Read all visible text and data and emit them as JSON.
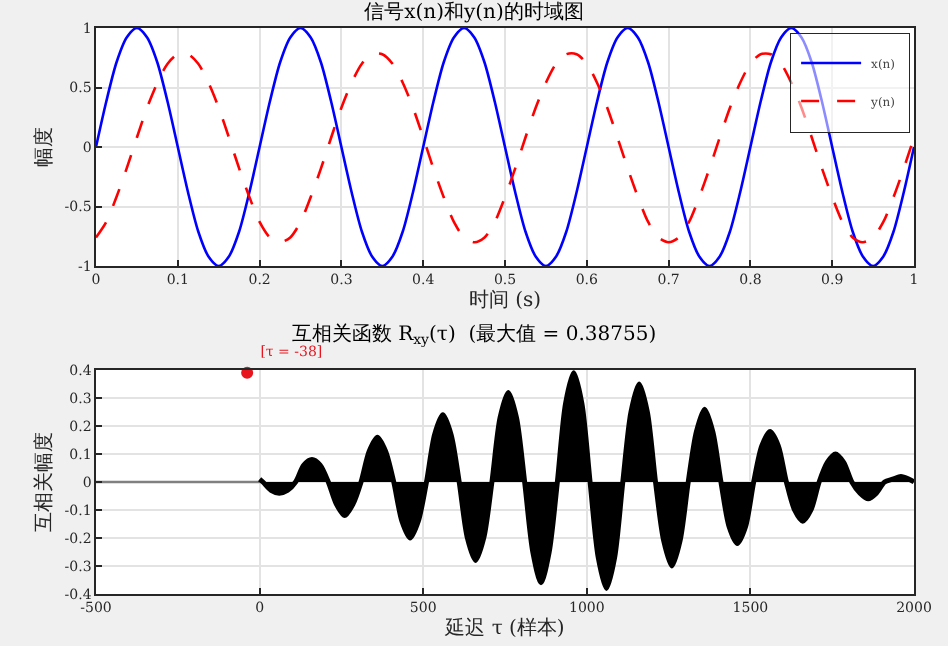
{
  "chart_data": [
    {
      "type": "line",
      "title": "信号x(n)和y(n)的时域图",
      "xlabel": "时间 (s)",
      "ylabel": "幅度",
      "xlim": [
        0,
        1
      ],
      "xticks": [
        0,
        0.1,
        0.2,
        0.3,
        0.4,
        0.5,
        0.6,
        0.7,
        0.8,
        0.9,
        1
      ],
      "ylim": [
        -1,
        1
      ],
      "yticks": [
        -1,
        -0.5,
        0,
        0.5,
        1
      ],
      "grid": true,
      "legend": "top right",
      "x": [
        0,
        0.0125,
        0.025,
        0.0375,
        0.05,
        0.0625,
        0.075,
        0.0875,
        0.1,
        0.1125,
        0.125,
        0.1375,
        0.15,
        0.1625,
        0.175,
        0.1875,
        0.2,
        0.2125,
        0.225,
        0.2375,
        0.25,
        0.2625,
        0.275,
        0.2875,
        0.3,
        0.3125,
        0.325,
        0.3375,
        0.35,
        0.3625,
        0.375,
        0.3875,
        0.4,
        0.4125,
        0.425,
        0.4375,
        0.45,
        0.4625,
        0.475,
        0.4875,
        0.5,
        0.5125,
        0.525,
        0.5375,
        0.55,
        0.5625,
        0.575,
        0.5875,
        0.6,
        0.6125,
        0.625,
        0.6375,
        0.65,
        0.6625,
        0.675,
        0.6875,
        0.7,
        0.7125,
        0.725,
        0.7375,
        0.75,
        0.7625,
        0.775,
        0.7875,
        0.8,
        0.8125,
        0.825,
        0.8375,
        0.85,
        0.8625,
        0.875,
        0.8875,
        0.9,
        0.9125,
        0.925,
        0.9375,
        0.95,
        0.9625,
        0.975,
        0.9875,
        1
      ],
      "series": [
        {
          "name": "x(n)",
          "color": "#0000ff",
          "line_style": "solid",
          "values": [
            0,
            0.38,
            0.71,
            0.92,
            1,
            0.92,
            0.71,
            0.38,
            0,
            -0.38,
            -0.71,
            -0.92,
            -1,
            -0.92,
            -0.71,
            -0.38,
            0,
            0.38,
            0.71,
            0.92,
            1,
            0.92,
            0.71,
            0.38,
            0,
            -0.38,
            -0.71,
            -0.92,
            -1,
            -0.92,
            -0.71,
            -0.38,
            0,
            0.38,
            0.71,
            0.92,
            1,
            0.92,
            0.71,
            0.38,
            0,
            -0.38,
            -0.71,
            -0.92,
            -1,
            -0.92,
            -0.71,
            -0.38,
            0,
            0.38,
            0.71,
            0.92,
            1,
            0.92,
            0.71,
            0.38,
            0,
            -0.38,
            -0.71,
            -0.92,
            -1,
            -0.92,
            -0.71,
            -0.38,
            0,
            0.38,
            0.71,
            0.92,
            1,
            0.92,
            0.71,
            0.38,
            0,
            -0.38,
            -0.71,
            -0.92,
            -1,
            -0.92,
            -0.71,
            -0.38,
            0
          ]
        },
        {
          "name": "y(n)",
          "color": "#ff0000",
          "line_style": "dashed",
          "values": [
            -0.76,
            -0.63,
            -0.42,
            -0.18,
            0.08,
            0.33,
            0.54,
            0.7,
            0.78,
            0.78,
            0.7,
            0.54,
            0.33,
            0.08,
            -0.18,
            -0.42,
            -0.63,
            -0.76,
            -0.8,
            -0.76,
            -0.63,
            -0.42,
            -0.18,
            0.08,
            0.33,
            0.54,
            0.7,
            0.78,
            0.78,
            0.7,
            0.54,
            0.33,
            0.08,
            -0.18,
            -0.42,
            -0.63,
            -0.76,
            -0.8,
            -0.76,
            -0.63,
            -0.42,
            -0.18,
            0.08,
            0.33,
            0.54,
            0.7,
            0.78,
            0.78,
            0.7,
            0.54,
            0.33,
            0.08,
            -0.18,
            -0.42,
            -0.63,
            -0.76,
            -0.8,
            -0.76,
            -0.63,
            -0.42,
            -0.18,
            0.08,
            0.33,
            0.54,
            0.7,
            0.78,
            0.78,
            0.7,
            0.54,
            0.33,
            0.08,
            -0.18,
            -0.42,
            -0.63,
            -0.76,
            -0.8,
            -0.76,
            -0.63,
            -0.42,
            -0.18,
            0.08
          ]
        }
      ]
    },
    {
      "type": "area",
      "title": "互相关函数 R$_{xy}$(τ)  (最大值 = 0.38755)",
      "xlabel": "延迟 τ (样本)",
      "ylabel": "互相关幅度",
      "xlim": [
        -500,
        2000
      ],
      "xticks": [
        -500,
        0,
        500,
        1000,
        1500,
        2000
      ],
      "ylim": [
        -0.4,
        0.4
      ],
      "yticks": [
        -0.4,
        -0.3,
        -0.2,
        -0.1,
        0,
        0.1,
        0.2,
        0.3,
        0.4
      ],
      "grid": true,
      "annotations": [
        {
          "text": "[τ = -38]",
          "x": -38,
          "y": 0.39
        }
      ],
      "series": [
        {
          "type": "line",
          "color": "#808080",
          "x": [
            -500,
            0
          ],
          "values": [
            0,
            0
          ]
        },
        {
          "color": "#000000",
          "x": [
            0,
            10,
            35,
            60,
            85,
            110,
            135,
            160,
            185,
            210,
            235,
            260,
            285,
            310,
            335,
            360,
            385,
            410,
            435,
            460,
            485,
            510,
            535,
            560,
            585,
            610,
            635,
            660,
            685,
            710,
            735,
            760,
            785,
            810,
            835,
            860,
            885,
            910,
            935,
            960,
            985,
            1010,
            1035,
            1060,
            1085,
            1110,
            1135,
            1160,
            1185,
            1210,
            1235,
            1260,
            1285,
            1310,
            1335,
            1360,
            1385,
            1410,
            1435,
            1460,
            1485,
            1510,
            1535,
            1560,
            1585,
            1610,
            1635,
            1660,
            1685,
            1710,
            1735,
            1760,
            1785,
            1810,
            1835,
            1860,
            1885,
            1910,
            1935,
            1960,
            1985,
            2000
          ],
          "values": [
            0.01,
            0,
            -0.03,
            -0.04,
            -0.03,
            0,
            0.06,
            0.08,
            0.06,
            0,
            -0.08,
            -0.12,
            -0.08,
            0,
            0.11,
            0.16,
            0.11,
            0,
            -0.14,
            -0.2,
            -0.14,
            0,
            0.17,
            0.24,
            0.17,
            0,
            -0.2,
            -0.28,
            -0.2,
            0,
            0.23,
            0.32,
            0.23,
            0,
            -0.25,
            -0.36,
            -0.25,
            0,
            0.28,
            0.39,
            0.28,
            0,
            -0.27,
            -0.38,
            -0.27,
            0,
            0.25,
            0.35,
            0.25,
            0,
            -0.21,
            -0.3,
            -0.21,
            0,
            0.18,
            0.26,
            0.18,
            0,
            -0.16,
            -0.22,
            -0.16,
            0,
            0.13,
            0.18,
            0.13,
            0,
            -0.1,
            -0.14,
            -0.1,
            0,
            0.07,
            0.1,
            0.07,
            0,
            -0.04,
            -0.06,
            -0.04,
            0,
            0.01,
            0.02,
            0.01,
            0
          ]
        },
        {
          "type": "scatter",
          "color": "#e8141e",
          "x": [
            -38
          ],
          "values": [
            0.39
          ]
        }
      ]
    }
  ]
}
